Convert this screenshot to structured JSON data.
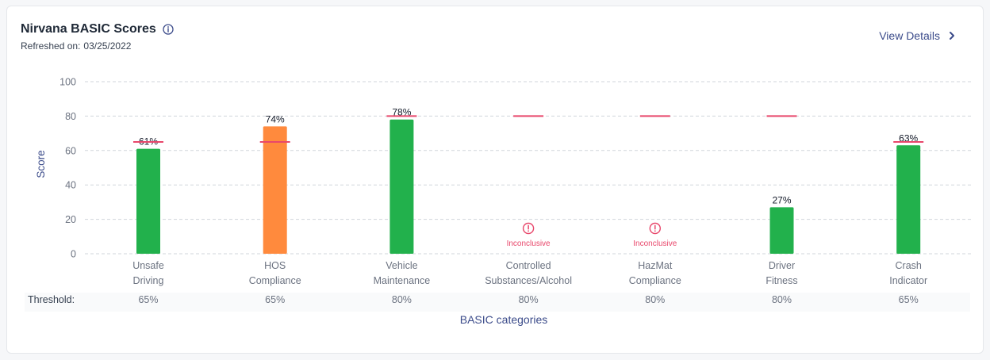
{
  "header": {
    "title": "Nirvana BASIC Scores",
    "refreshed_label": "Refreshed on:",
    "refreshed_date": "03/25/2022",
    "view_details": "View Details"
  },
  "colors": {
    "green": "#22b14c",
    "orange": "#ff8a3d",
    "threshold_line": "#e8476b",
    "inconclusive": "#e8476b",
    "grid": "#d1d5db",
    "axis_text": "#6b7280",
    "axis_title": "#3b4b8a"
  },
  "chart_data": {
    "type": "bar",
    "title": "Nirvana BASIC Scores",
    "xlabel": "BASIC categories",
    "ylabel": "Score",
    "ylim": [
      0,
      100
    ],
    "yticks": [
      0,
      20,
      40,
      60,
      80,
      100
    ],
    "grid": true,
    "threshold_label": "Threshold:",
    "inconclusive_label": "Inconclusive",
    "categories": [
      {
        "line1": "Unsafe",
        "line2": "Driving",
        "value": 61,
        "label": "61%",
        "threshold": 65,
        "threshold_label": "65%",
        "status": "ok"
      },
      {
        "line1": "HOS",
        "line2": "Compliance",
        "value": 74,
        "label": "74%",
        "threshold": 65,
        "threshold_label": "65%",
        "status": "alert"
      },
      {
        "line1": "Vehicle",
        "line2": "Maintenance",
        "value": 78,
        "label": "78%",
        "threshold": 80,
        "threshold_label": "80%",
        "status": "ok"
      },
      {
        "line1": "Controlled",
        "line2": "Substances/Alcohol",
        "value": null,
        "label": "",
        "threshold": 80,
        "threshold_label": "80%",
        "status": "inconclusive"
      },
      {
        "line1": "HazMat",
        "line2": "Compliance",
        "value": null,
        "label": "",
        "threshold": 80,
        "threshold_label": "80%",
        "status": "inconclusive"
      },
      {
        "line1": "Driver",
        "line2": "Fitness",
        "value": 27,
        "label": "27%",
        "threshold": 80,
        "threshold_label": "80%",
        "status": "ok"
      },
      {
        "line1": "Crash",
        "line2": "Indicator",
        "value": 63,
        "label": "63%",
        "threshold": 65,
        "threshold_label": "65%",
        "status": "ok"
      }
    ]
  }
}
